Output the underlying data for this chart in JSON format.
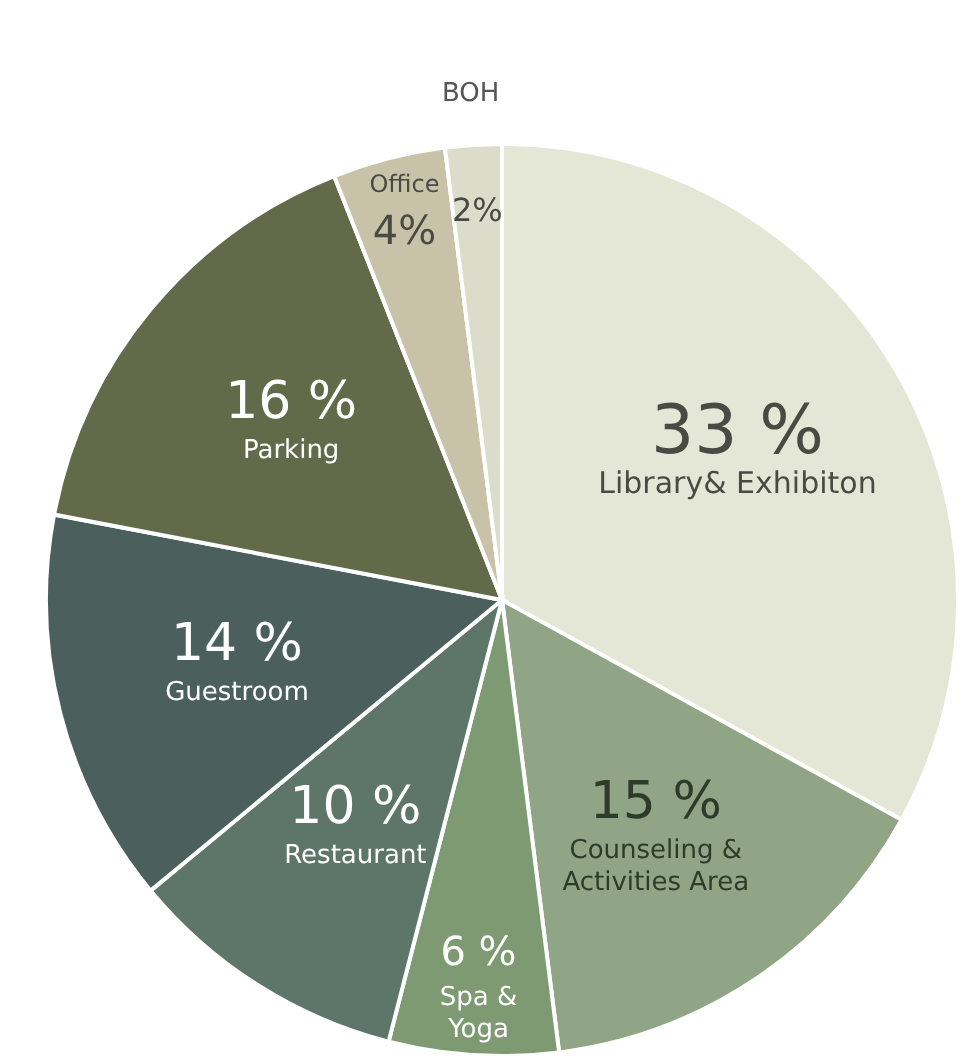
{
  "chart_data": {
    "type": "pie",
    "categories": [
      "Library& Exhibiton",
      "Counseling & Activities Area",
      "Spa & Yoga",
      "Restaurant",
      "Guestroom",
      "Parking",
      "Office",
      "BOH"
    ],
    "values": [
      33,
      15,
      6,
      10,
      14,
      16,
      4,
      2
    ],
    "value_labels": [
      "33 %",
      "15 %",
      "6 %",
      "10 %",
      "14 %",
      "16 %",
      "4%",
      "2%"
    ],
    "colors": [
      "#e4e6d6",
      "#8fa585",
      "#7e9a73",
      "#5d7669",
      "#4b605c",
      "#636a4a",
      "#c8c3a8",
      "#dcdccb"
    ]
  }
}
